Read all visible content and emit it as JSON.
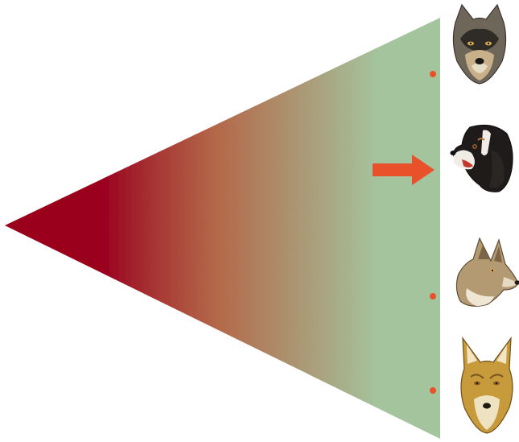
{
  "diagram": {
    "gradient_colors": {
      "apex": "#9e0a24",
      "mid": "#b86a4a",
      "base": "#a8c9a2"
    },
    "marker_color": "#e8512a",
    "arrow_color": "#e8512a",
    "highlighted_canid_index": 1,
    "canids": [
      {
        "icon": "gray-wolf-head-icon",
        "marked": true
      },
      {
        "icon": "domestic-dog-head-icon",
        "marked": false
      },
      {
        "icon": "coyote-head-icon",
        "marked": true
      },
      {
        "icon": "golden-jackal-head-icon",
        "marked": true
      }
    ]
  }
}
